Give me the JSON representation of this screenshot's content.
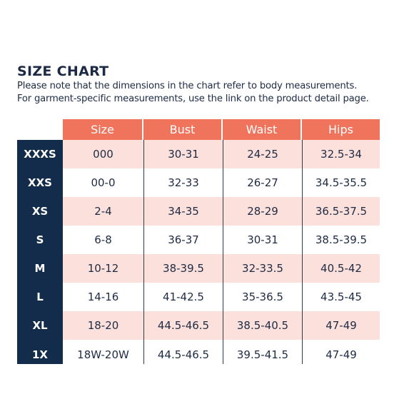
{
  "title": "SIZE CHART",
  "notes": [
    "Please note that the dimensions in the chart refer to body measurements.",
    "For garment-specific measurements, use the link on the product detail page."
  ],
  "table": {
    "headers": [
      "Size",
      "Bust",
      "Waist",
      "Hips"
    ],
    "rows": [
      {
        "label": "XXXS",
        "size": "000",
        "bust": "30-31",
        "waist": "24-25",
        "hips": "32.5-34"
      },
      {
        "label": "XXS",
        "size": "00-0",
        "bust": "32-33",
        "waist": "26-27",
        "hips": "34.5-35.5"
      },
      {
        "label": "XS",
        "size": "2-4",
        "bust": "34-35",
        "waist": "28-29",
        "hips": "36.5-37.5"
      },
      {
        "label": "S",
        "size": "6-8",
        "bust": "36-37",
        "waist": "30-31",
        "hips": "38.5-39.5"
      },
      {
        "label": "M",
        "size": "10-12",
        "bust": "38-39.5",
        "waist": "32-33.5",
        "hips": "40.5-42"
      },
      {
        "label": "L",
        "size": "14-16",
        "bust": "41-42.5",
        "waist": "35-36.5",
        "hips": "43.5-45"
      },
      {
        "label": "XL",
        "size": "18-20",
        "bust": "44.5-46.5",
        "waist": "38.5-40.5",
        "hips": "47-49"
      },
      {
        "label": "1X",
        "size": "18W-20W",
        "bust": "44.5-46.5",
        "waist": "39.5-41.5",
        "hips": "47-49"
      }
    ]
  },
  "colors": {
    "header_bg": "#f0735c",
    "label_column_bg": "#142c4b",
    "alt_row_bg": "#fce0db",
    "text": "#1e2b44"
  }
}
